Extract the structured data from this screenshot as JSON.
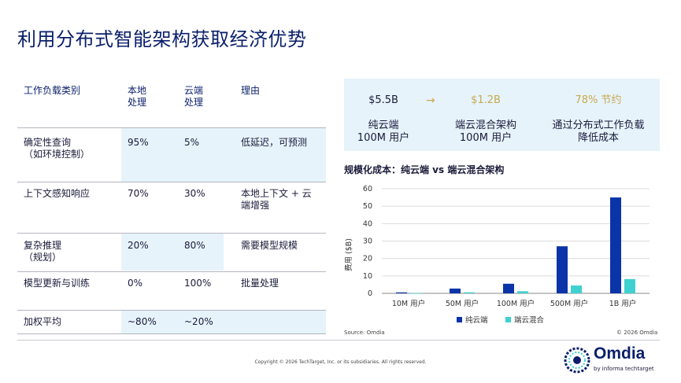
{
  "title": "利用分布式智能架构获取经济优势",
  "table": {
    "headers": [
      "工作负载类别",
      "本地\n处理",
      "云端\n处理",
      "理由"
    ],
    "rows": [
      {
        "category": "确定性查询\n（如环境控制）",
        "local": "95%",
        "cloud": "5%",
        "reason": "低延迟，可预测"
      },
      {
        "category": "上下文感知响应",
        "local": "70%",
        "cloud": "30%",
        "reason": "本地上下文 + 云\n端增强"
      },
      {
        "category": "复杂推理\n（规划）",
        "local": "20%",
        "cloud": "80%",
        "reason": "需要模型规模"
      },
      {
        "category": "模型更新与训练",
        "local": "0%",
        "cloud": "100%",
        "reason": "批量处理"
      },
      {
        "category": "加权平均",
        "local": "~80%",
        "cloud": "~20%",
        "reason": ""
      }
    ]
  },
  "summary": {
    "value1": "$5.5B",
    "arrow": "→",
    "value2": "$1.2B",
    "value3": "78% 节约",
    "label1": "纯云端\n100M 用户",
    "label2": "端云混合架构\n100M 用户",
    "label3": "通过分布式工作负载\n降低成本"
  },
  "chart_data": {
    "type": "bar",
    "title": "规模化成本：纯云端 vs 端云混合架构",
    "ylabel": "费用 ($B)",
    "ylim": [
      0,
      60
    ],
    "yticks": [
      0,
      10,
      20,
      30,
      40,
      50,
      60
    ],
    "categories": [
      "10M 用户",
      "50M 用户",
      "100M 用户",
      "500M 用户",
      "1B 用户"
    ],
    "series": [
      {
        "name": "纯云端",
        "color": "#0a34a8",
        "values": [
          0.55,
          2.75,
          5.5,
          27,
          55
        ]
      },
      {
        "name": "端云混合",
        "color": "#3fd0d0",
        "values": [
          0.12,
          0.6,
          1.2,
          4.5,
          8.2
        ]
      }
    ],
    "grid": true,
    "legend": "bottom-center"
  },
  "source": "Source: Omdia",
  "chart_copyright": "© 2026 Omdia",
  "footer": "Copyright © 2026 TechTarget, Inc. or its subsidiaries. All rights reserved.",
  "logo": {
    "word": "Omdia",
    "sub": "by informa techtarget"
  }
}
